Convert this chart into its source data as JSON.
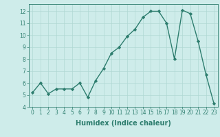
{
  "x": [
    0,
    1,
    2,
    3,
    4,
    5,
    6,
    7,
    8,
    9,
    10,
    11,
    12,
    13,
    14,
    15,
    16,
    17,
    18,
    19,
    20,
    21,
    22,
    23
  ],
  "y": [
    5.2,
    6.0,
    5.1,
    5.5,
    5.5,
    5.5,
    6.0,
    4.8,
    6.2,
    7.2,
    8.5,
    9.0,
    9.9,
    10.5,
    11.5,
    12.0,
    12.0,
    11.0,
    8.0,
    12.1,
    11.8,
    9.5,
    6.7,
    4.3
  ],
  "line_color": "#2d7d6e",
  "marker": "D",
  "markersize": 2.2,
  "linewidth": 1.0,
  "xlabel": "Humidex (Indice chaleur)",
  "xlim": [
    -0.5,
    23.5
  ],
  "ylim": [
    4,
    12.6
  ],
  "yticks": [
    4,
    5,
    6,
    7,
    8,
    9,
    10,
    11,
    12
  ],
  "xticks": [
    0,
    1,
    2,
    3,
    4,
    5,
    6,
    7,
    8,
    9,
    10,
    11,
    12,
    13,
    14,
    15,
    16,
    17,
    18,
    19,
    20,
    21,
    22,
    23
  ],
  "bg_color": "#ceecea",
  "grid_color": "#b0d8d4",
  "tick_fontsize": 5.5,
  "xlabel_fontsize": 7.0,
  "tick_color": "#2d7d6e"
}
